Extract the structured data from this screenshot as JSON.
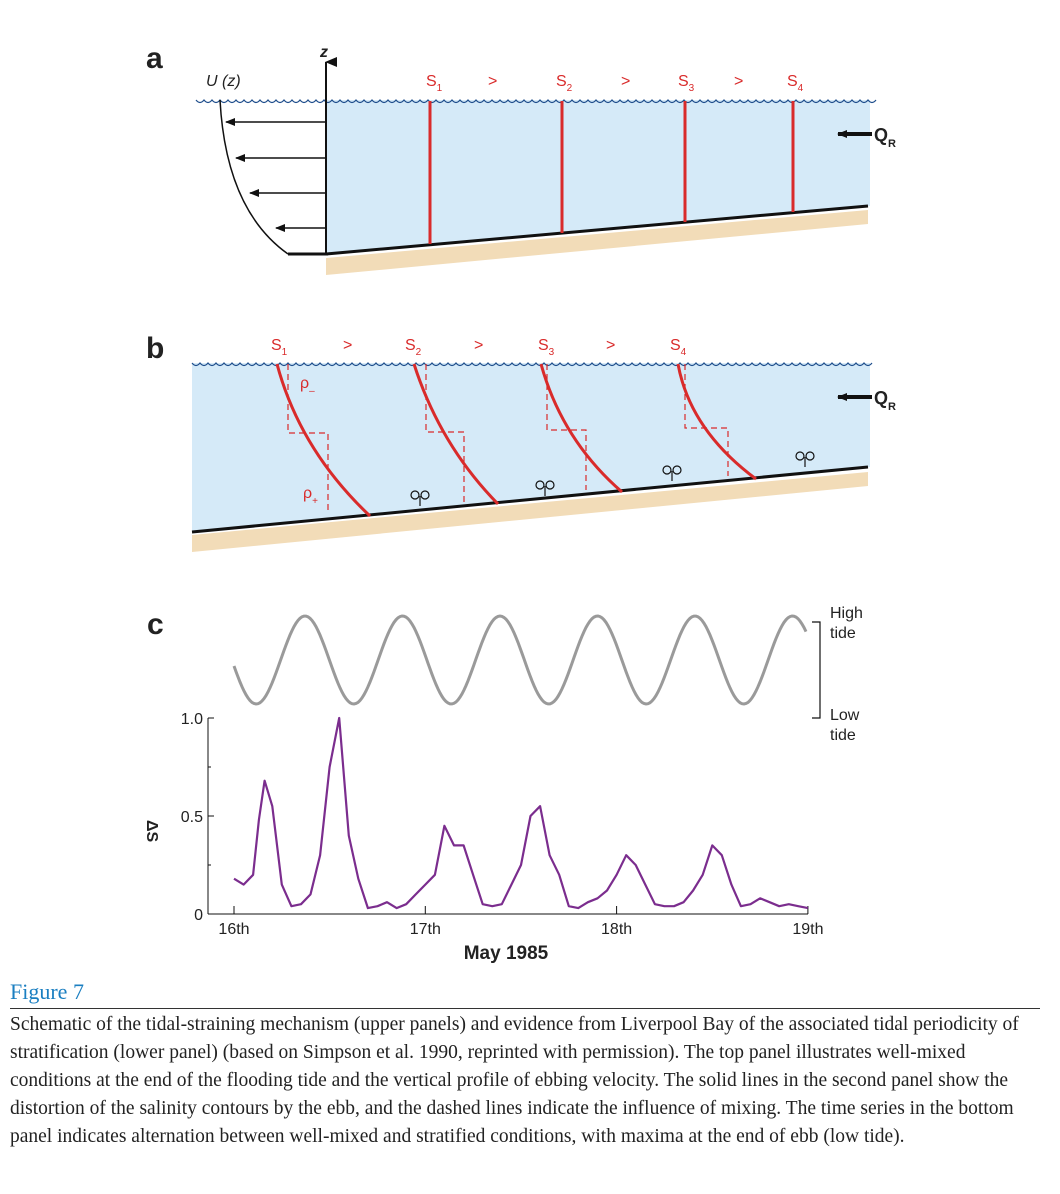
{
  "figure": {
    "title": "Figure 7",
    "caption": "Schematic of the tidal-straining mechanism (upper panels) and evidence from Liverpool Bay of the associated tidal periodicity of stratification (lower panel) (based on Simpson et al. 1990, reprinted with permission). The top panel illustrates well-mixed conditions at the end of the flooding tide and the vertical profile of ebbing velocity. The solid lines in the second panel show the distortion of the salinity contours by the ebb, and the dashed lines indicate the influence of mixing. The time series in the bottom panel indicates alternation between well-mixed and stratified conditions, with maxima at the end of ebb (low tide)."
  },
  "panel_a": {
    "label": "a",
    "velocity_label": "U (z)",
    "axis_label": "z",
    "salinity": [
      {
        "name": "S",
        "sub": "1"
      },
      {
        "name": "S",
        "sub": "2"
      },
      {
        "name": "S",
        "sub": "3"
      },
      {
        "name": "S",
        "sub": "4"
      }
    ],
    "gt": ">",
    "river": {
      "name": "Q",
      "sub": "R"
    }
  },
  "panel_b": {
    "label": "b",
    "salinity": [
      {
        "name": "S",
        "sub": "1"
      },
      {
        "name": "S",
        "sub": "2"
      },
      {
        "name": "S",
        "sub": "3"
      },
      {
        "name": "S",
        "sub": "4"
      }
    ],
    "gt": ">",
    "rho_minus": {
      "name": "ρ",
      "sub": "–"
    },
    "rho_plus": {
      "name": "ρ",
      "sub": "+"
    },
    "river": {
      "name": "Q",
      "sub": "R"
    }
  },
  "panel_c": {
    "label": "c",
    "tide_high": [
      "High",
      "tide"
    ],
    "tide_low": [
      "Low",
      "tide"
    ]
  },
  "colors": {
    "water": "#d5eaf8",
    "sediment": "#f2dcb8",
    "salinity_lines": "#d92b2b",
    "stratification_series": "#7b2d8e",
    "tide_curve": "#9a9a9a",
    "caption_title": "#1b7fc1"
  },
  "chart_data": {
    "type": "line",
    "xlabel": "May 1985",
    "ylabel": "ΔS",
    "x_ticks": [
      "16th",
      "17th",
      "18th",
      "19th"
    ],
    "y_ticks": [
      "0",
      "0.5",
      "1.0"
    ],
    "ylim": [
      0,
      1.0
    ],
    "xlim": [
      0,
      3.2
    ],
    "series": [
      {
        "x": [
          0,
          0.05,
          0.1,
          0.13,
          0.16,
          0.2,
          0.25,
          0.3,
          0.35,
          0.4,
          0.45,
          0.5,
          0.55,
          0.6,
          0.65,
          0.7,
          0.75,
          0.8,
          0.85,
          0.9,
          0.95,
          1.0,
          1.05,
          1.1,
          1.15,
          1.2,
          1.25,
          1.3,
          1.35,
          1.4,
          1.45,
          1.5,
          1.55,
          1.6,
          1.65,
          1.7,
          1.75,
          1.8,
          1.85,
          1.9,
          1.95,
          2.0,
          2.05,
          2.1,
          2.15,
          2.2,
          2.25,
          2.3,
          2.35,
          2.4,
          2.45,
          2.5,
          2.55,
          2.6,
          2.65,
          2.7,
          2.75,
          2.8,
          2.85,
          2.9,
          2.95,
          3.0
        ],
        "values": [
          0.18,
          0.15,
          0.2,
          0.48,
          0.68,
          0.55,
          0.15,
          0.04,
          0.05,
          0.1,
          0.3,
          0.75,
          1.0,
          0.4,
          0.18,
          0.03,
          0.04,
          0.06,
          0.03,
          0.05,
          0.1,
          0.15,
          0.2,
          0.45,
          0.35,
          0.35,
          0.2,
          0.05,
          0.04,
          0.05,
          0.15,
          0.25,
          0.5,
          0.55,
          0.3,
          0.2,
          0.04,
          0.03,
          0.06,
          0.08,
          0.12,
          0.2,
          0.3,
          0.25,
          0.15,
          0.05,
          0.04,
          0.04,
          0.06,
          0.12,
          0.2,
          0.35,
          0.3,
          0.15,
          0.04,
          0.05,
          0.08,
          0.06,
          0.04,
          0.05,
          0.04,
          0.03
        ]
      }
    ]
  }
}
